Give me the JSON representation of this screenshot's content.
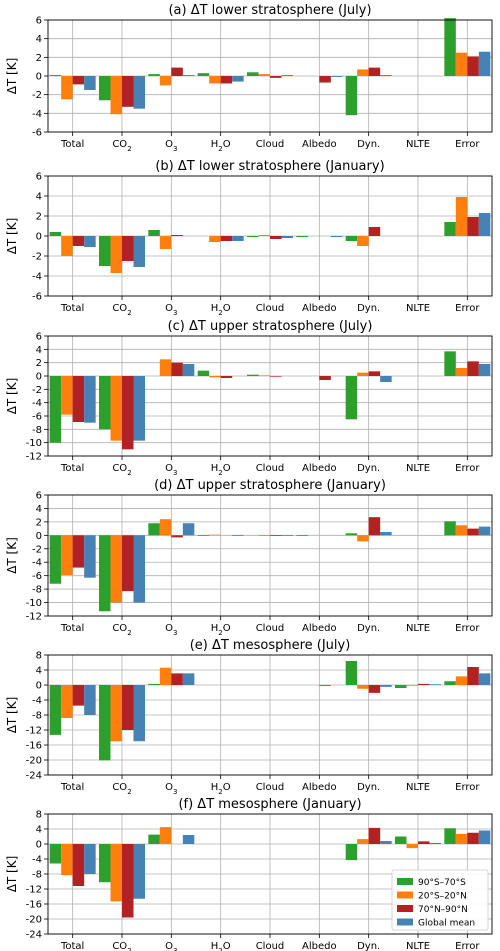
{
  "categories": [
    "Total",
    "CO2",
    "O3",
    "H2O",
    "Cloud",
    "Albedo",
    "Dyn.",
    "NLTE",
    "Error"
  ],
  "colors": [
    "#2ca02c",
    "#ff7f0e",
    "#b22222",
    "#4682b4"
  ],
  "legend": {
    "placement": "bottom-right",
    "entries": [
      "90°S–70°S",
      "20°S–20°N",
      "70°N–90°N",
      "Global mean"
    ]
  },
  "chart_data": [
    {
      "type": "bar",
      "title": "(a) ΔT lower stratosphere (July)",
      "ylabel": "ΔT [K]",
      "ylim": [
        -6,
        6
      ],
      "yticks": [
        -6,
        -4,
        -2,
        0,
        2,
        4,
        6
      ],
      "grid": true,
      "series": [
        {
          "values": [
            0.1,
            -2.6,
            0.2,
            0.3,
            0.4,
            0.0,
            -4.2,
            0.0,
            6.2
          ]
        },
        {
          "values": [
            -2.5,
            -4.1,
            -1.0,
            -0.8,
            0.2,
            0.0,
            0.7,
            0.0,
            2.5
          ]
        },
        {
          "values": [
            -0.9,
            -3.3,
            0.9,
            -0.8,
            -0.2,
            -0.7,
            0.9,
            0.0,
            2.1
          ]
        },
        {
          "values": [
            -1.5,
            -3.5,
            0.1,
            -0.6,
            0.1,
            -0.1,
            0.1,
            0.0,
            2.6
          ]
        }
      ]
    },
    {
      "type": "bar",
      "title": "(b) ΔT lower stratosphere (January)",
      "ylabel": "ΔT [K]",
      "ylim": [
        -6,
        6
      ],
      "yticks": [
        -6,
        -4,
        -2,
        0,
        2,
        4,
        6
      ],
      "grid": true,
      "series": [
        {
          "values": [
            0.4,
            -3.0,
            0.6,
            0.0,
            -0.1,
            -0.1,
            -0.5,
            0.0,
            1.4
          ]
        },
        {
          "values": [
            -2.0,
            -3.7,
            -1.3,
            -0.6,
            0.1,
            0.0,
            -1.0,
            0.0,
            3.9
          ]
        },
        {
          "values": [
            -1.0,
            -2.5,
            0.1,
            -0.5,
            -0.3,
            0.0,
            0.9,
            0.0,
            1.9
          ]
        },
        {
          "values": [
            -1.1,
            -3.1,
            0.0,
            -0.5,
            -0.2,
            -0.1,
            0.0,
            0.0,
            2.3
          ]
        }
      ]
    },
    {
      "type": "bar",
      "title": "(c) ΔT upper stratosphere (July)",
      "ylabel": "ΔT [K]",
      "ylim": [
        -12,
        6
      ],
      "yticks": [
        -12,
        -10,
        -8,
        -6,
        -4,
        -2,
        0,
        2,
        4,
        6
      ],
      "grid": true,
      "series": [
        {
          "values": [
            -10.0,
            -8.0,
            0.0,
            0.8,
            0.2,
            0.0,
            -6.5,
            0.0,
            3.7
          ]
        },
        {
          "values": [
            -5.8,
            -9.7,
            2.5,
            -0.2,
            0.1,
            0.0,
            0.5,
            0.0,
            1.2
          ]
        },
        {
          "values": [
            -6.9,
            -11.0,
            2.0,
            -0.3,
            -0.1,
            -0.6,
            0.7,
            0.0,
            2.2
          ]
        },
        {
          "values": [
            -7.0,
            -9.7,
            1.8,
            0.0,
            0.0,
            0.0,
            -0.9,
            0.0,
            1.8
          ]
        }
      ]
    },
    {
      "type": "bar",
      "title": "(d) ΔT upper stratosphere (January)",
      "ylabel": "ΔT [K]",
      "ylim": [
        -12,
        6
      ],
      "yticks": [
        -12,
        -10,
        -8,
        -6,
        -4,
        -2,
        0,
        2,
        4,
        6
      ],
      "grid": true,
      "series": [
        {
          "values": [
            -7.2,
            -11.3,
            1.8,
            -0.1,
            0.0,
            -0.1,
            0.3,
            0.0,
            2.1
          ]
        },
        {
          "values": [
            -5.9,
            -10.0,
            2.4,
            0.1,
            -0.1,
            0.0,
            -0.9,
            0.0,
            1.5
          ]
        },
        {
          "values": [
            -4.8,
            -8.3,
            -0.3,
            0.0,
            -0.1,
            0.0,
            2.7,
            0.0,
            1.0
          ]
        },
        {
          "values": [
            -6.3,
            -10.0,
            1.8,
            -0.1,
            -0.1,
            0.0,
            0.5,
            0.0,
            1.3
          ]
        }
      ]
    },
    {
      "type": "bar",
      "title": "(e) ΔT mesosphere (July)",
      "ylabel": "ΔT [K]",
      "ylim": [
        -24,
        8
      ],
      "yticks": [
        -24,
        -20,
        -16,
        -12,
        -8,
        -4,
        0,
        4,
        8
      ],
      "grid": true,
      "series": [
        {
          "values": [
            -13.3,
            -20.1,
            0.3,
            0.0,
            0.0,
            0.0,
            6.4,
            -0.8,
            1.0
          ]
        },
        {
          "values": [
            -8.8,
            -15.0,
            4.6,
            0.0,
            0.0,
            0.0,
            -1.0,
            -0.2,
            2.3
          ]
        },
        {
          "values": [
            -5.5,
            -12.0,
            3.1,
            0.0,
            0.0,
            -0.2,
            -2.1,
            0.3,
            4.8
          ]
        },
        {
          "values": [
            -8.0,
            -15.0,
            3.1,
            0.0,
            0.0,
            0.0,
            -0.5,
            0.2,
            3.1
          ]
        }
      ]
    },
    {
      "type": "bar",
      "title": "(f) ΔT mesosphere (January)",
      "ylabel": "ΔT [K]",
      "ylim": [
        -24,
        8
      ],
      "yticks": [
        -24,
        -20,
        -16,
        -12,
        -8,
        -4,
        0,
        4,
        8
      ],
      "grid": true,
      "series": [
        {
          "values": [
            -5.2,
            -10.2,
            2.5,
            0.0,
            0.0,
            0.0,
            -4.3,
            2.0,
            4.2
          ]
        },
        {
          "values": [
            -8.3,
            -15.3,
            4.5,
            0.0,
            0.0,
            0.0,
            1.3,
            -1.1,
            2.7
          ]
        },
        {
          "values": [
            -11.2,
            -19.6,
            0.0,
            0.0,
            0.0,
            0.0,
            4.3,
            0.7,
            3.0
          ]
        },
        {
          "values": [
            -8.0,
            -14.6,
            2.4,
            0.0,
            0.0,
            0.0,
            0.8,
            0.3,
            3.6
          ]
        }
      ]
    }
  ]
}
